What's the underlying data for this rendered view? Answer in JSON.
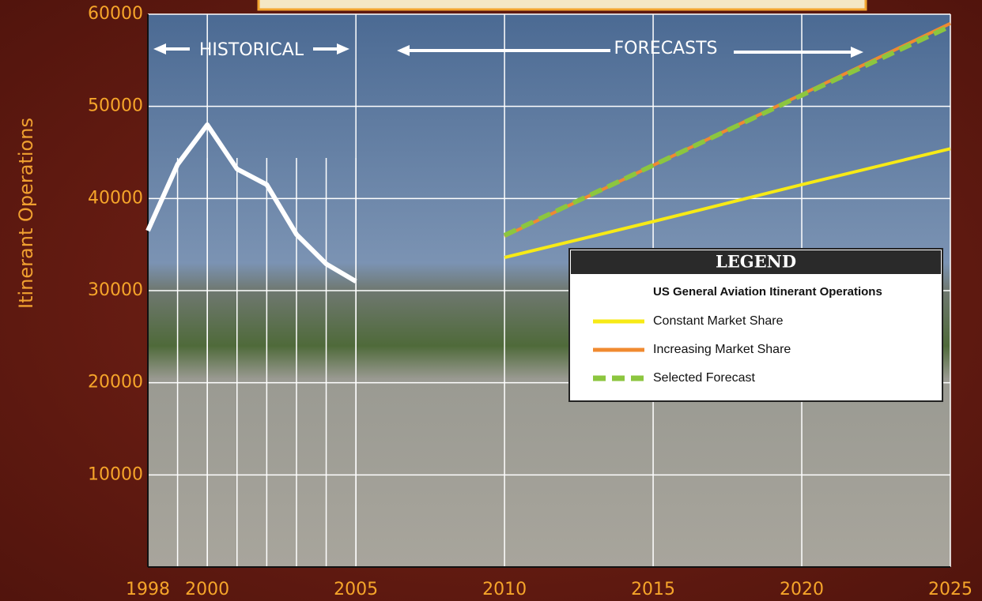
{
  "chart_data": {
    "type": "line",
    "y_label": "Itinerant Operations",
    "annotations": [
      "HISTORICAL",
      "FORECASTS"
    ],
    "legend_title": "LEGEND",
    "legend_subtitle": "US General Aviation Itinerant  Operations",
    "xlim": [
      1998,
      2025
    ],
    "xticks": [
      1998,
      2000,
      2005,
      2010,
      2015,
      2020,
      2025
    ],
    "ylim": [
      0,
      60000
    ],
    "yticks": [
      10000,
      20000,
      30000,
      40000,
      50000,
      60000
    ],
    "grid": true,
    "series": [
      {
        "color": "#ffffff",
        "x": [
          1998,
          1999,
          2000,
          2001,
          2002,
          2003,
          2004,
          2005
        ],
        "values": [
          36500,
          43700,
          48000,
          43200,
          41500,
          36100,
          32900,
          31000
        ]
      },
      {
        "name": "Constant  Market Share",
        "color": "#f7ea16",
        "x": [
          2010,
          2015,
          2020,
          2025
        ],
        "values": [
          33600,
          37500,
          41500,
          45400
        ]
      },
      {
        "name": "Increasing Market Share",
        "color": "#f08a30",
        "x": [
          2010,
          2015,
          2020,
          2025
        ],
        "values": [
          35900,
          43600,
          51300,
          59000
        ]
      },
      {
        "name": "Selected Forecast",
        "color": "#8cc63f",
        "dashed": true,
        "x": [
          2010,
          2015,
          2020,
          2025
        ],
        "values": [
          36000,
          43600,
          51200,
          58700
        ]
      }
    ]
  }
}
